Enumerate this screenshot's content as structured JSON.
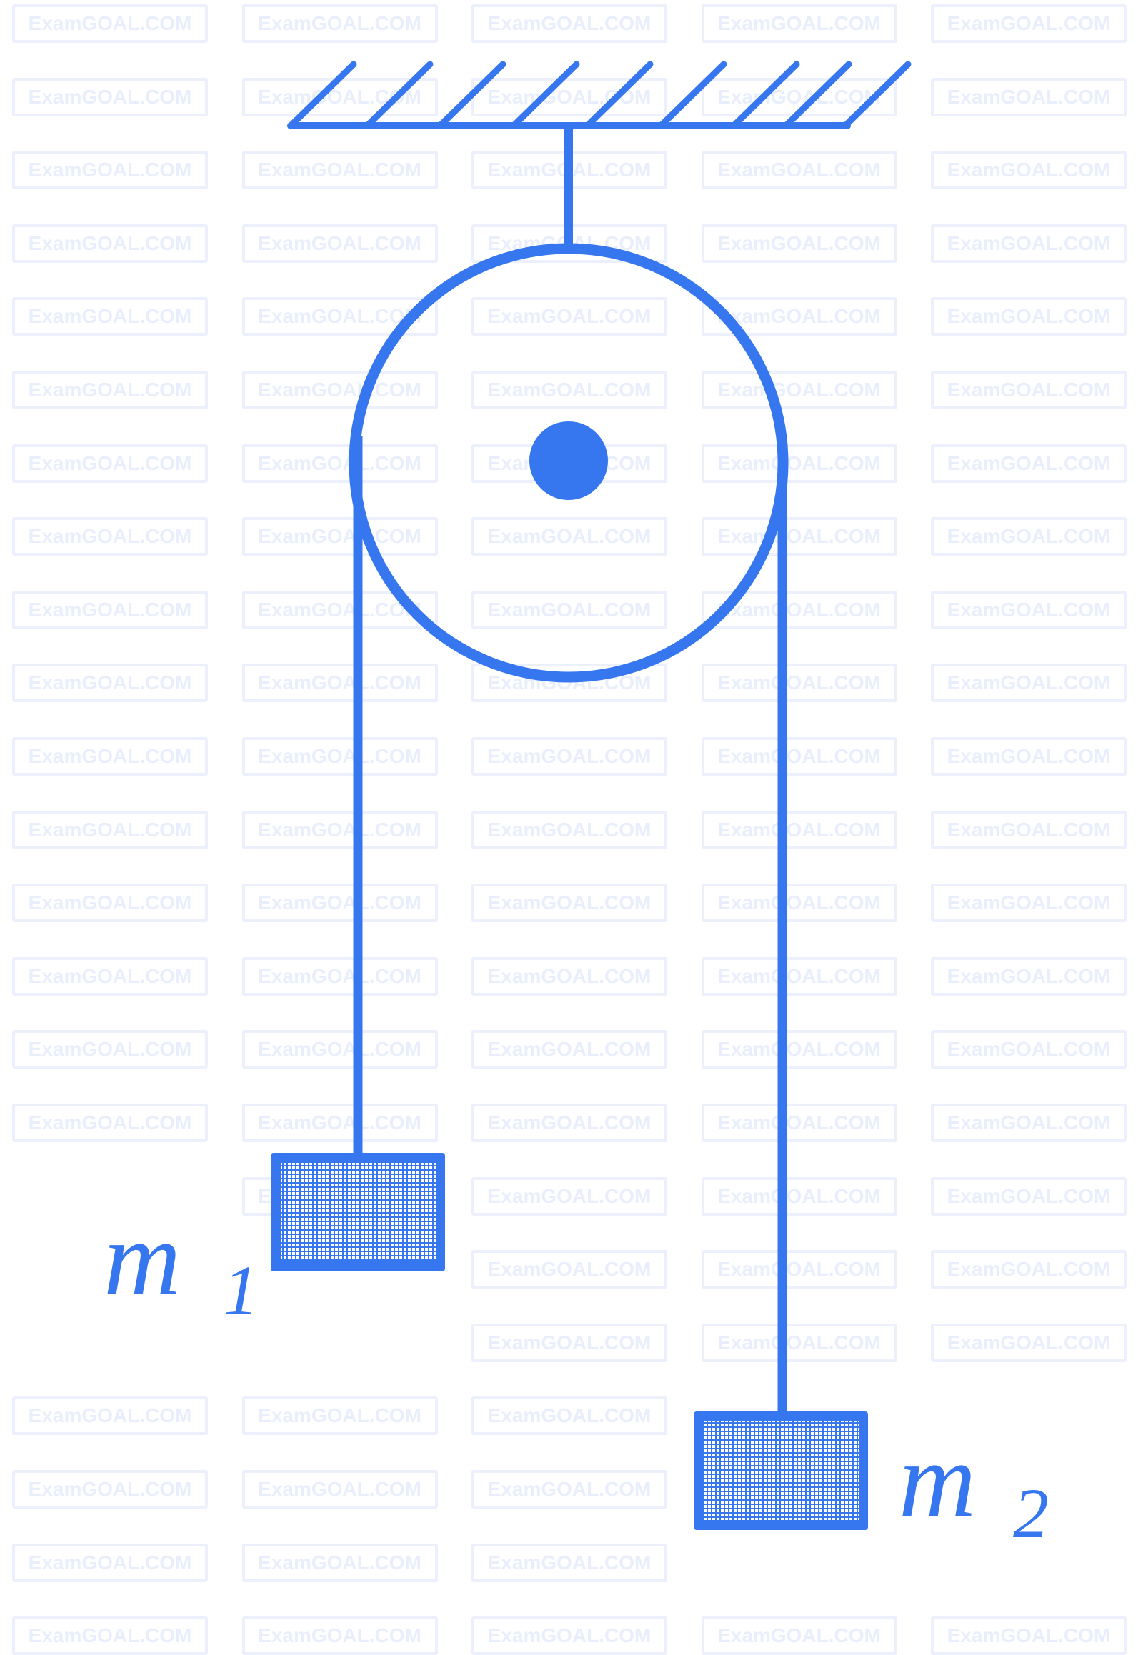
{
  "watermark": "ExamGOAL.COM",
  "labels": {
    "m1": "m",
    "m1_sub": "1",
    "m2": "m",
    "m2_sub": "2"
  },
  "colors": {
    "stroke": "#3677f0",
    "watermark": "#ebf0fc"
  }
}
